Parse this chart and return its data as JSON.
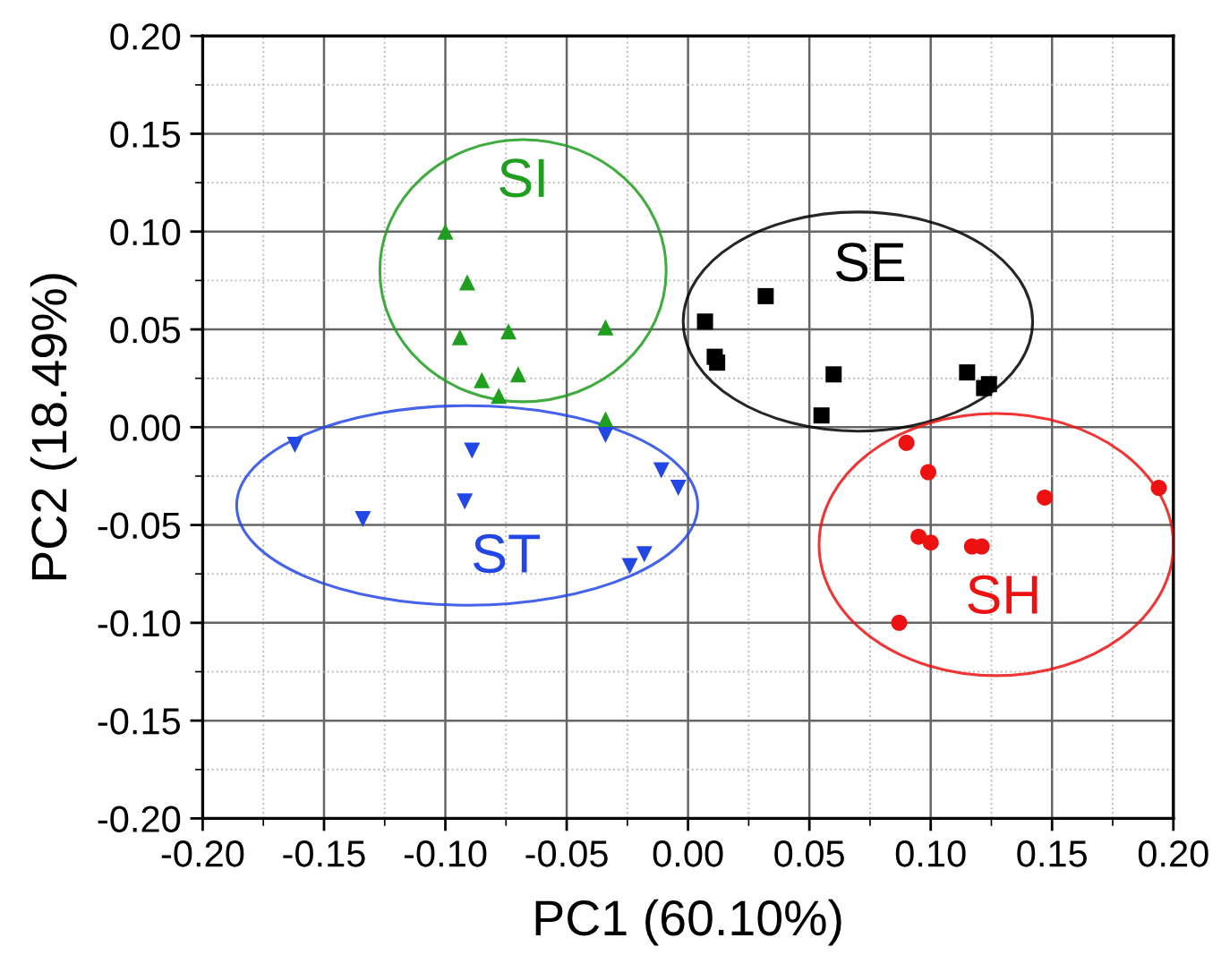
{
  "chart_data": {
    "type": "scatter",
    "xlabel": "PC1 (60.10%)",
    "ylabel": "PC2 (18.49%)",
    "xlim": [
      -0.2,
      0.2
    ],
    "xticks": [
      {
        "value": -0.2,
        "label": "-0.20"
      },
      {
        "value": -0.15,
        "label": "-0.15"
      },
      {
        "value": -0.1,
        "label": "-0.10"
      },
      {
        "value": -0.05,
        "label": "-0.05"
      },
      {
        "value": 0,
        "label": "0.00"
      },
      {
        "value": 0.05,
        "label": "0.05"
      },
      {
        "value": 0.1,
        "label": "0.10"
      },
      {
        "value": 0.15,
        "label": "0.15"
      },
      {
        "value": 0.2,
        "label": "0.20"
      }
    ],
    "ylim": [
      -0.2,
      0.2
    ],
    "yticks": [
      {
        "value": -0.2,
        "label": "-0.20"
      },
      {
        "value": -0.15,
        "label": "-0.15"
      },
      {
        "value": -0.1,
        "label": "-0.10"
      },
      {
        "value": -0.05,
        "label": "-0.05"
      },
      {
        "value": 0,
        "label": "0.00"
      },
      {
        "value": 0.05,
        "label": "0.05"
      },
      {
        "value": 0.1,
        "label": "0.10"
      },
      {
        "value": 0.15,
        "label": "0.15"
      },
      {
        "value": 0.2,
        "label": "0.20"
      }
    ],
    "grid": true,
    "legend": false,
    "series": [
      {
        "name": "SI",
        "marker": "triangle",
        "color": "#1f9e1f",
        "x": [
          -0.1,
          -0.091,
          -0.094,
          -0.074,
          -0.034,
          -0.085,
          -0.07,
          -0.078,
          -0.034
        ],
        "values": [
          0.1,
          0.074,
          0.046,
          0.049,
          0.051,
          0.024,
          0.027,
          0.016,
          0.004
        ]
      },
      {
        "name": "ST",
        "marker": "triangle-down",
        "color": "#2346e6",
        "x": [
          -0.162,
          -0.134,
          -0.089,
          -0.092,
          -0.034,
          -0.011,
          -0.004,
          -0.018,
          -0.024
        ],
        "values": [
          -0.009,
          -0.047,
          -0.012,
          -0.038,
          -0.004,
          -0.022,
          -0.031,
          -0.065,
          -0.071
        ]
      },
      {
        "name": "SE",
        "marker": "square",
        "color": "#000000",
        "x": [
          0.007,
          0.032,
          0.011,
          0.012,
          0.06,
          0.055,
          0.115,
          0.124,
          0.122
        ],
        "values": [
          0.054,
          0.067,
          0.036,
          0.033,
          0.027,
          0.006,
          0.028,
          0.022,
          0.02
        ]
      },
      {
        "name": "SH",
        "marker": "circle",
        "color": "#ee1111",
        "x": [
          0.09,
          0.099,
          0.147,
          0.194,
          0.095,
          0.1,
          0.117,
          0.121,
          0.087
        ],
        "values": [
          -0.008,
          -0.023,
          -0.036,
          -0.031,
          -0.056,
          -0.059,
          -0.061,
          -0.061,
          -0.1
        ]
      }
    ]
  }
}
